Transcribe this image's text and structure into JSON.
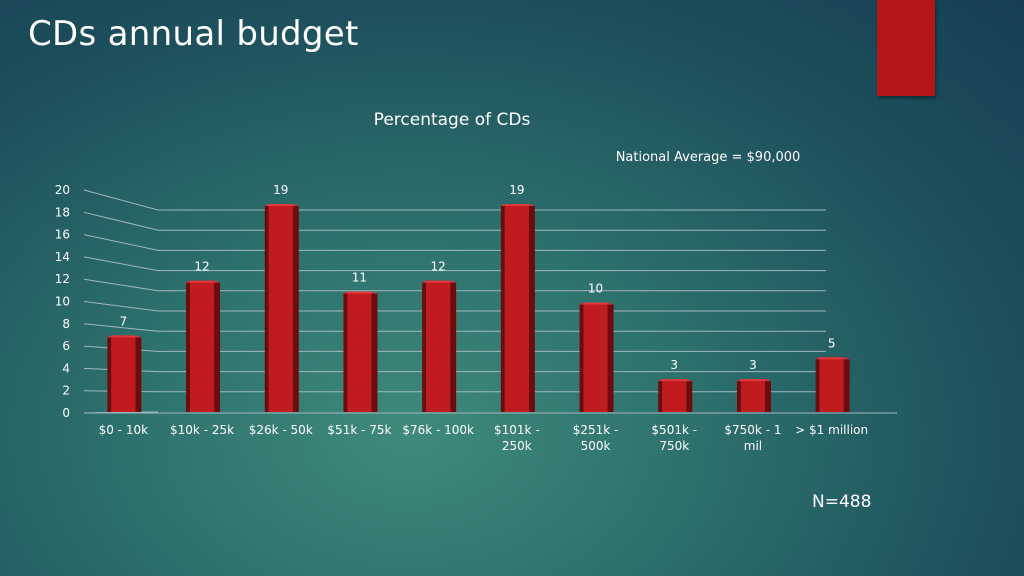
{
  "slide": {
    "title": "CDs annual budget",
    "footnote": "N=488"
  },
  "colors": {
    "bar_front": "#c01b1f",
    "bar_side": "#6e0b0d",
    "bar_top": "#e03a3c",
    "accent_block": "#b3171a",
    "gridline": "#9fb8bc"
  },
  "chart_data": {
    "type": "bar",
    "title": "Percentage of CDs",
    "annotation": "National Average = $90,000",
    "categories": [
      "$0 - 10k",
      "$10k - 25k",
      "$26k - 50k",
      "$51k - 75k",
      "$76k - 100k",
      "$101k - 250k",
      "$251k - 500k",
      "$501k - 750k",
      "$750k - 1 mil",
      "> $1 million"
    ],
    "category_lines": [
      [
        "$0 - 10k"
      ],
      [
        "$10k - 25k"
      ],
      [
        "$26k - 50k"
      ],
      [
        "$51k - 75k"
      ],
      [
        "$76k - 100k"
      ],
      [
        "$101k -",
        "250k"
      ],
      [
        "$251k -",
        "500k"
      ],
      [
        "$501k -",
        "750k"
      ],
      [
        "$750k - 1",
        "mil"
      ],
      [
        "> $1 million"
      ]
    ],
    "values": [
      7,
      12,
      19,
      11,
      12,
      19,
      10,
      3,
      3,
      5
    ],
    "ylim": [
      0,
      20
    ],
    "yticks": [
      0,
      2,
      4,
      6,
      8,
      10,
      12,
      14,
      16,
      18,
      20
    ],
    "grid": true,
    "data_labels": true,
    "legend": "none"
  }
}
